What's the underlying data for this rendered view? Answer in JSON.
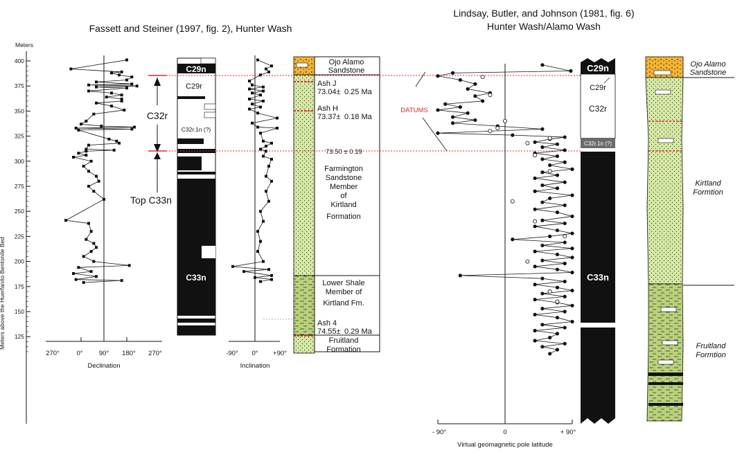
{
  "titles": {
    "left": "Fassett and Steiner (1997, fig. 2), Hunter Wash",
    "right_line1": "Lindsay, Butler, and Johnson (1981, fig. 6)",
    "right_line2": "Hunter Wash/Alamo Wash"
  },
  "depth_axis": {
    "unit_label": "Meters",
    "side_label": "Meters above the Huerfanito Bentonite Bed",
    "ticks": [
      "400",
      "375",
      "350",
      "325",
      "300",
      "275",
      "250",
      "225",
      "200",
      "175",
      "150",
      "125"
    ]
  },
  "declination": {
    "label": "Declination",
    "ticks": [
      "270°",
      "0°",
      "90°",
      "180°",
      "270°"
    ],
    "profile": [
      [
        180,
        401
      ],
      [
        -40,
        392
      ],
      [
        160,
        389
      ],
      [
        120,
        388
      ],
      [
        150,
        386
      ],
      [
        200,
        384
      ],
      [
        180,
        381
      ],
      [
        60,
        379
      ],
      [
        200,
        377
      ],
      [
        30,
        376
      ],
      [
        220,
        375
      ],
      [
        60,
        374
      ],
      [
        180,
        373
      ],
      [
        30,
        370
      ],
      [
        120,
        368
      ],
      [
        160,
        366
      ],
      [
        100,
        364
      ],
      [
        160,
        362
      ],
      [
        160,
        360
      ],
      [
        60,
        358
      ],
      [
        120,
        355
      ],
      [
        170,
        351
      ],
      [
        50,
        347
      ],
      [
        20,
        340
      ],
      [
        0,
        337
      ],
      [
        80,
        335
      ],
      [
        210,
        334
      ],
      [
        -20,
        333
      ],
      [
        200,
        332
      ],
      [
        -10,
        331
      ],
      [
        110,
        322
      ],
      [
        140,
        320
      ],
      [
        150,
        318
      ],
      [
        30,
        316
      ],
      [
        20,
        312
      ],
      [
        130,
        311
      ],
      [
        20,
        310
      ],
      [
        -10,
        308
      ],
      [
        20,
        306
      ],
      [
        -30,
        304
      ],
      [
        40,
        300
      ],
      [
        10,
        295
      ],
      [
        30,
        290
      ],
      [
        60,
        285
      ],
      [
        70,
        280
      ],
      [
        30,
        275
      ],
      [
        50,
        270
      ],
      [
        90,
        262
      ],
      [
        -60,
        241
      ],
      [
        30,
        238
      ],
      [
        40,
        230
      ],
      [
        20,
        222
      ],
      [
        50,
        218
      ],
      [
        60,
        214
      ],
      [
        40,
        210
      ],
      [
        10,
        205
      ],
      [
        50,
        200
      ],
      [
        190,
        196
      ],
      [
        -10,
        194
      ],
      [
        40,
        190
      ],
      [
        -30,
        188
      ],
      [
        60,
        185
      ],
      [
        -20,
        182
      ],
      [
        160,
        181
      ],
      [
        10,
        179
      ]
    ]
  },
  "inclination": {
    "label": "Inclination",
    "ticks": [
      "-90°",
      "0°",
      "+90°"
    ],
    "profile": [
      [
        10,
        401
      ],
      [
        60,
        395
      ],
      [
        40,
        392
      ],
      [
        50,
        389
      ],
      [
        20,
        386
      ],
      [
        -20,
        380
      ],
      [
        -10,
        376
      ],
      [
        30,
        374
      ],
      [
        -20,
        372
      ],
      [
        30,
        370
      ],
      [
        -10,
        368
      ],
      [
        20,
        366
      ],
      [
        -20,
        362
      ],
      [
        30,
        360
      ],
      [
        -10,
        357
      ],
      [
        20,
        354
      ],
      [
        -20,
        352
      ],
      [
        10,
        348
      ],
      [
        80,
        343
      ],
      [
        -10,
        338
      ],
      [
        10,
        334
      ],
      [
        80,
        333
      ],
      [
        20,
        328
      ],
      [
        30,
        320
      ],
      [
        60,
        318
      ],
      [
        40,
        315
      ],
      [
        20,
        312
      ],
      [
        40,
        310
      ],
      [
        30,
        305
      ],
      [
        60,
        302
      ],
      [
        50,
        295
      ],
      [
        40,
        285
      ],
      [
        60,
        280
      ],
      [
        40,
        270
      ],
      [
        50,
        260
      ],
      [
        20,
        250
      ],
      [
        30,
        240
      ],
      [
        10,
        230
      ],
      [
        20,
        220
      ],
      [
        10,
        210
      ],
      [
        30,
        200
      ],
      [
        -80,
        195
      ],
      [
        50,
        192
      ],
      [
        -40,
        190
      ],
      [
        60,
        186
      ],
      [
        0,
        184
      ],
      [
        60,
        182
      ],
      [
        20,
        180
      ]
    ]
  },
  "left_polarity": {
    "c29n": "C29n",
    "c29r": "C29r",
    "c32r1n": "C32r.1n (?)",
    "c33n": "C33n",
    "c32r_marker": "C32r",
    "top_c33n": "Top C33n"
  },
  "lithology": {
    "ojo_alamo": [
      "Ojo Alamo",
      "Sandstone"
    ],
    "ash_j": [
      "Ash J",
      "73.04±",
      "0.25 Ma"
    ],
    "ash_h": [
      "Ash H",
      "73.37±",
      "0.18 Ma"
    ],
    "datum_age": "73.50 ± 0.19",
    "farmington": [
      "Farmington",
      "Sandstone",
      "Member",
      "of",
      "Kirtland",
      "Formation"
    ],
    "lower_shale": [
      "Lower Shale",
      "Member of",
      "Kirtland Fm."
    ],
    "ash_4": [
      "Ash 4",
      "74.55±",
      "0.29 Ma"
    ],
    "fruitland": [
      "Fruitland",
      "Formation"
    ]
  },
  "datums_label": "DATUMS",
  "vgp": {
    "label": "Virtual geomagnetic pole latitude",
    "ticks": [
      "- 90°",
      "0",
      "+ 90°"
    ],
    "filled": [
      [
        50,
        396
      ],
      [
        88,
        390
      ],
      [
        -70,
        388
      ],
      [
        -90,
        385
      ],
      [
        -60,
        381
      ],
      [
        -40,
        377
      ],
      [
        -50,
        372
      ],
      [
        -20,
        368
      ],
      [
        -40,
        365
      ],
      [
        -30,
        360
      ],
      [
        -80,
        357
      ],
      [
        -60,
        354
      ],
      [
        -90,
        351
      ],
      [
        -50,
        348
      ],
      [
        -70,
        344
      ],
      [
        -40,
        341
      ],
      [
        -70,
        338
      ],
      [
        -10,
        335
      ],
      [
        50,
        332
      ],
      [
        -20,
        330
      ],
      [
        -90,
        328
      ],
      [
        10,
        326
      ],
      [
        80,
        324
      ],
      [
        60,
        322
      ],
      [
        40,
        319
      ],
      [
        70,
        317
      ],
      [
        50,
        314
      ],
      [
        80,
        311
      ],
      [
        40,
        308
      ],
      [
        70,
        305
      ],
      [
        50,
        302
      ],
      [
        80,
        299
      ],
      [
        60,
        296
      ],
      [
        90,
        292
      ],
      [
        50,
        289
      ],
      [
        70,
        286
      ],
      [
        40,
        283
      ],
      [
        80,
        279
      ],
      [
        50,
        276
      ],
      [
        70,
        273
      ],
      [
        40,
        270
      ],
      [
        90,
        266
      ],
      [
        60,
        263
      ],
      [
        50,
        259
      ],
      [
        80,
        256
      ],
      [
        40,
        252
      ],
      [
        70,
        249
      ],
      [
        90,
        245
      ],
      [
        50,
        241
      ],
      [
        80,
        238
      ],
      [
        40,
        235
      ],
      [
        70,
        231
      ],
      [
        90,
        228
      ],
      [
        60,
        225
      ],
      [
        10,
        222
      ],
      [
        80,
        219
      ],
      [
        50,
        216
      ],
      [
        90,
        213
      ],
      [
        40,
        210
      ],
      [
        70,
        207
      ],
      [
        90,
        204
      ],
      [
        50,
        201
      ],
      [
        80,
        198
      ],
      [
        40,
        195
      ],
      [
        70,
        192
      ],
      [
        90,
        189
      ],
      [
        -60,
        186
      ],
      [
        50,
        183
      ],
      [
        80,
        180
      ],
      [
        40,
        177
      ],
      [
        70,
        174
      ],
      [
        90,
        171
      ],
      [
        50,
        168
      ],
      [
        80,
        165
      ],
      [
        40,
        162
      ],
      [
        70,
        159
      ],
      [
        90,
        156
      ],
      [
        50,
        153
      ],
      [
        80,
        150
      ],
      [
        40,
        147
      ],
      [
        70,
        144
      ],
      [
        90,
        140
      ],
      [
        50,
        137
      ],
      [
        80,
        134
      ],
      [
        40,
        131
      ],
      [
        70,
        128
      ],
      [
        60,
        124
      ],
      [
        40,
        121
      ],
      [
        80,
        118
      ],
      [
        50,
        115
      ],
      [
        70,
        112
      ],
      [
        60,
        108
      ]
    ],
    "open": [
      [
        -30,
        384
      ],
      [
        -20,
        366
      ],
      [
        0,
        340
      ],
      [
        -10,
        333
      ],
      [
        -20,
        330
      ],
      [
        60,
        323
      ],
      [
        30,
        318
      ],
      [
        40,
        306
      ],
      [
        60,
        290
      ],
      [
        10,
        260
      ],
      [
        40,
        240
      ],
      [
        80,
        225
      ],
      [
        30,
        200
      ],
      [
        60,
        170
      ],
      [
        70,
        160
      ]
    ]
  },
  "right_polarity": {
    "c29n": "C29n",
    "c29r": "C29r",
    "c32r": "C32r",
    "c32r1n": "C32r.1n (?)",
    "c33n": "C33n"
  },
  "right_litho": {
    "ojo_alamo": [
      "Ojo Alamo",
      "Sandstone"
    ],
    "kirtland": [
      "Kirtland",
      "Formtion"
    ],
    "fruitland": [
      "Fruitland",
      "Formtion"
    ]
  },
  "colors": {
    "sandstone_green": "#d4e8a4",
    "shale_green": "#b9d27a",
    "ojo_alamo_orange": "#f5b330",
    "datum_red": "#e0252a",
    "ink": "#111111"
  }
}
